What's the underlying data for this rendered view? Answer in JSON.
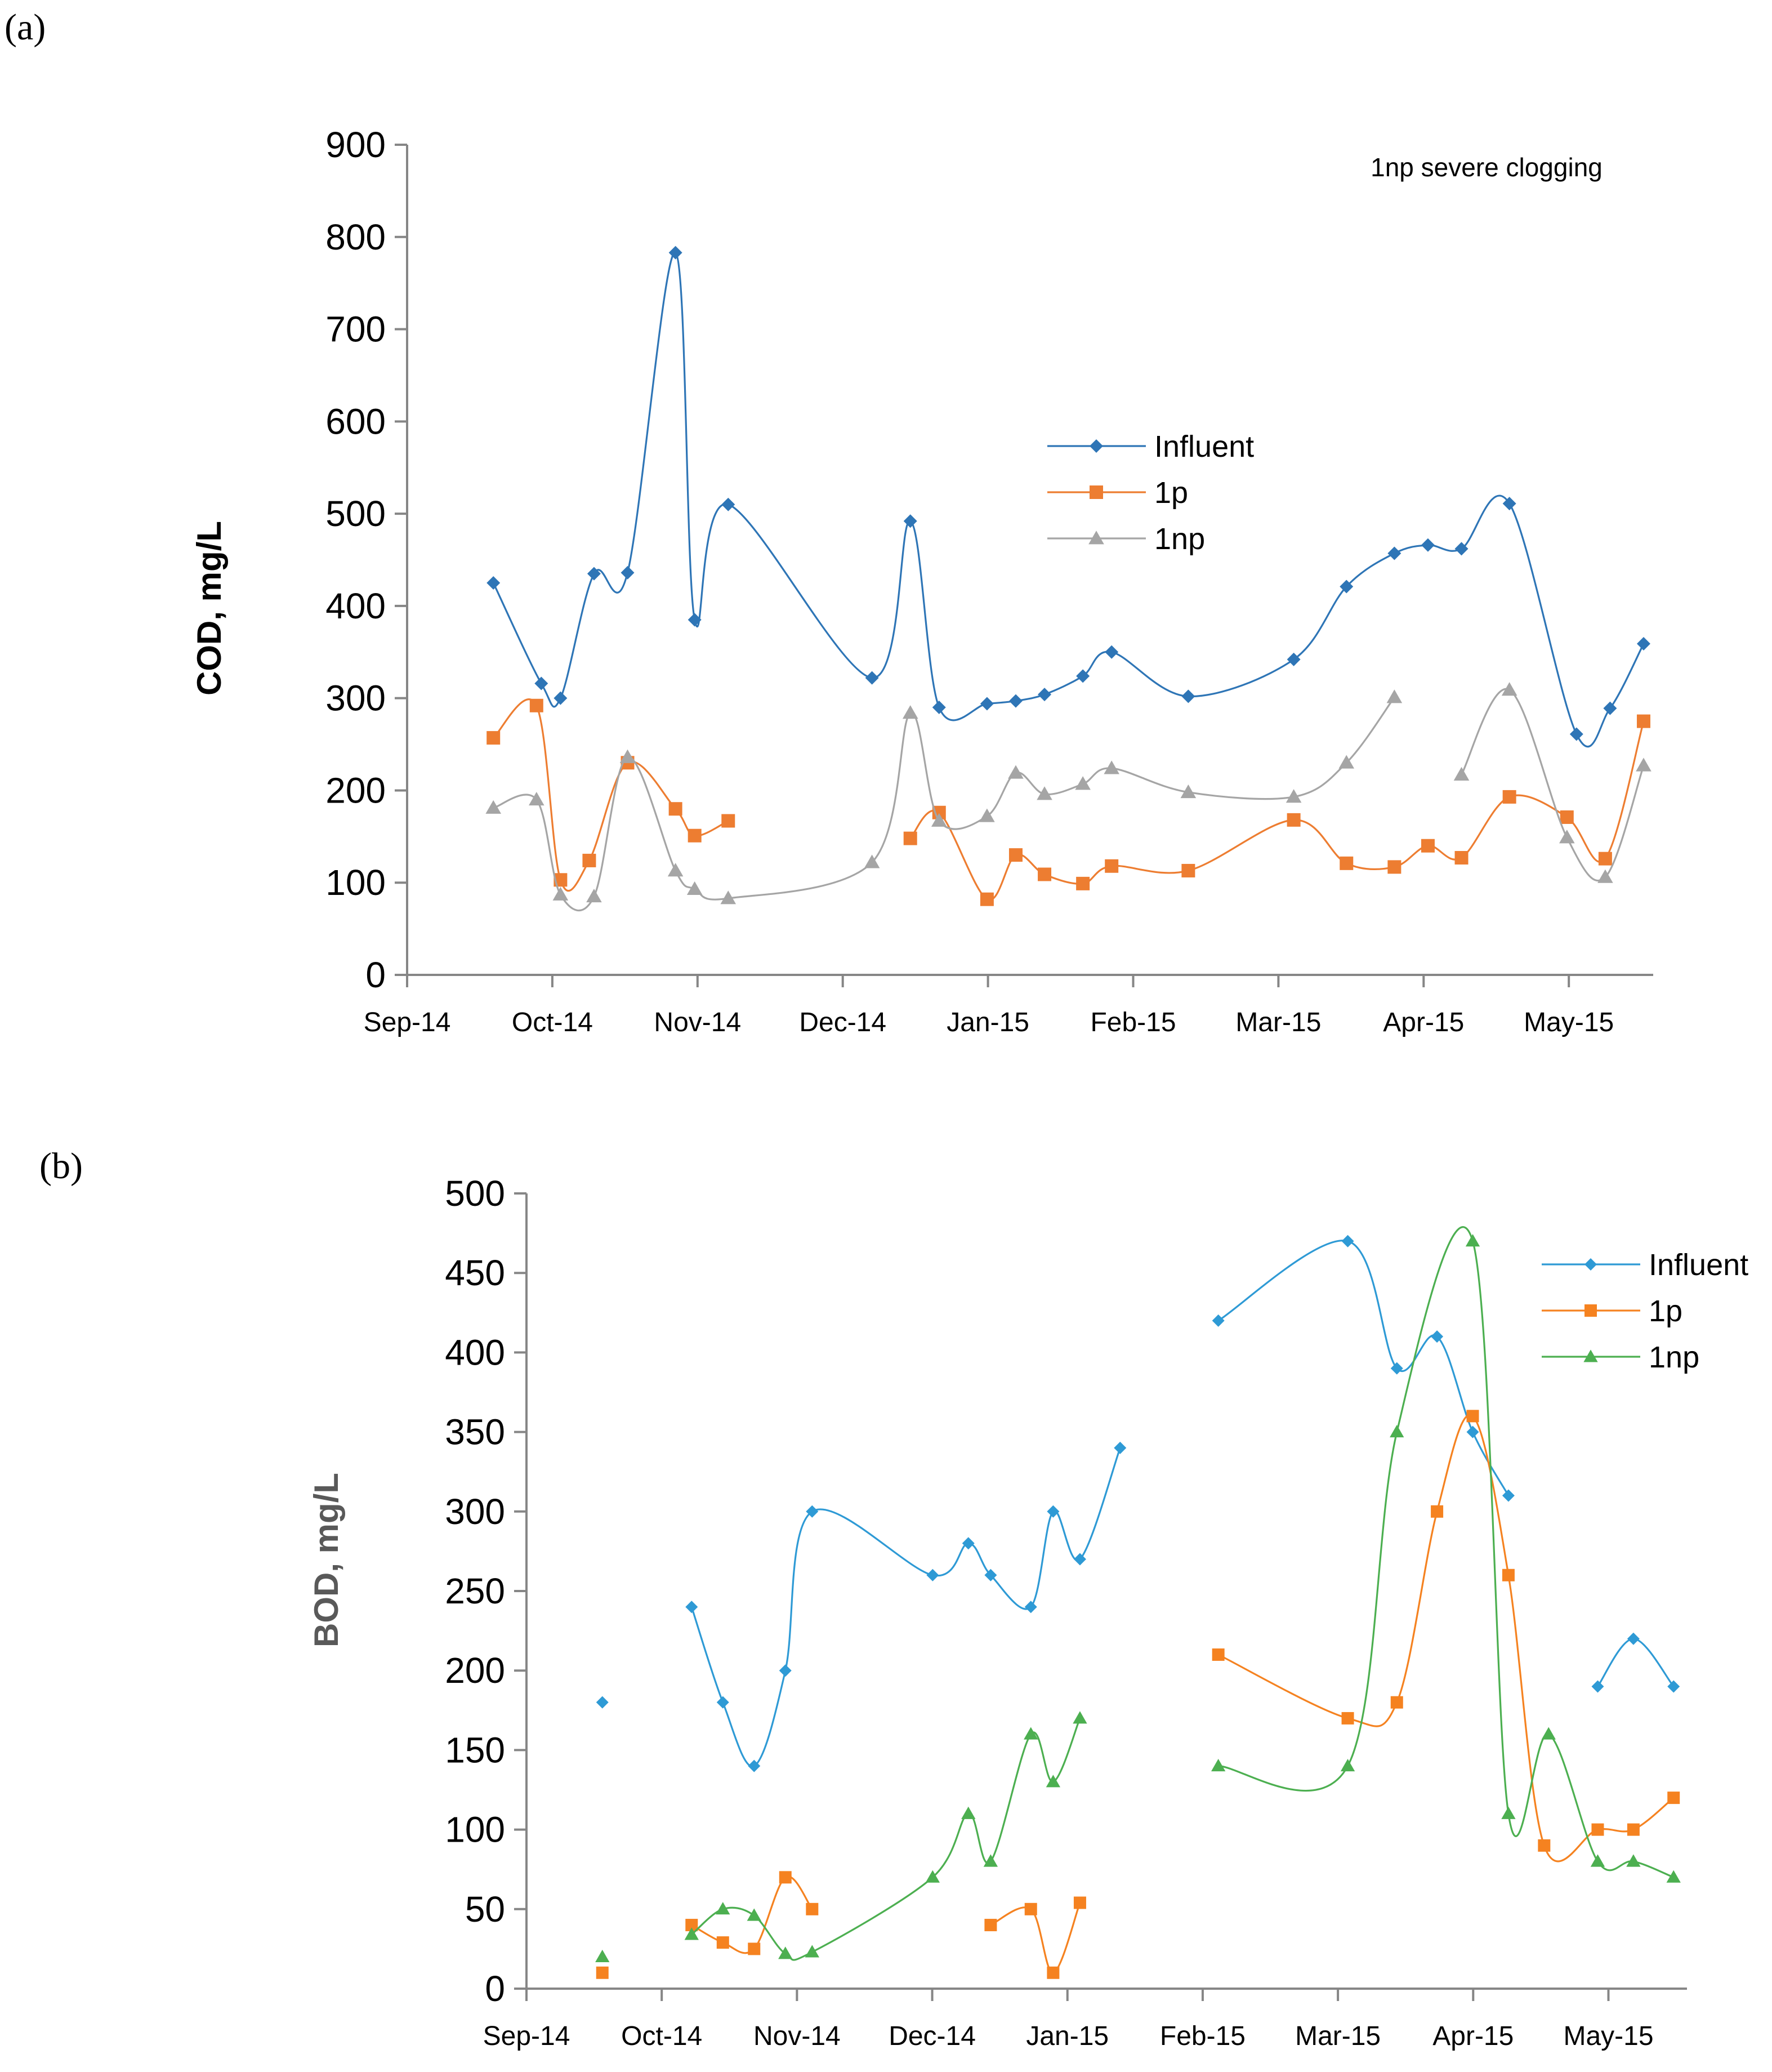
{
  "chart_data": [
    {
      "panel_label": "(a)",
      "type": "line",
      "title": "",
      "xlabel": "",
      "ylabel": "COD, mg/L",
      "ylim": [
        0,
        900
      ],
      "yticks": [
        "0",
        "100",
        "200",
        "300",
        "400",
        "500",
        "600",
        "700",
        "800",
        "900"
      ],
      "xlim": [
        0,
        260
      ],
      "xtick_labels": [
        "Sep-14",
        "Oct-14",
        "Nov-14",
        "Dec-14",
        "Jan-15",
        "Feb-15",
        "Mar-15",
        "Apr-15",
        "May-15"
      ],
      "annotation": "1np severe clogging",
      "legend_position": "center-right",
      "series": [
        {
          "name": "Influent",
          "color": "#2E75B6",
          "marker": "diamond",
          "segments": [
            [
              [
                18,
                425
              ],
              [
                28,
                316
              ],
              [
                32,
                300
              ],
              [
                39,
                435
              ],
              [
                46,
                436
              ],
              [
                56,
                783
              ],
              [
                60,
                385
              ],
              [
                67,
                510
              ],
              [
                97,
                322
              ],
              [
                105,
                492
              ],
              [
                111,
                290
              ],
              [
                121,
                294
              ],
              [
                127,
                297
              ],
              [
                133,
                304
              ],
              [
                141,
                324
              ],
              [
                147,
                350
              ],
              [
                163,
                302
              ],
              [
                185,
                342
              ],
              [
                196,
                421
              ],
              [
                206,
                457
              ],
              [
                213,
                466
              ],
              [
                220,
                462
              ],
              [
                230,
                511
              ],
              [
                244,
                261
              ],
              [
                251,
                289
              ],
              [
                258,
                359
              ]
            ]
          ]
        },
        {
          "name": "1p",
          "color": "#ED7D31",
          "marker": "square",
          "segments": [
            [
              [
                18,
                257
              ],
              [
                27,
                292
              ],
              [
                32,
                103
              ],
              [
                38,
                124
              ],
              [
                46,
                230
              ],
              [
                56,
                180
              ],
              [
                60,
                151
              ],
              [
                67,
                167
              ]
            ],
            [
              [
                105,
                148
              ],
              [
                111,
                176
              ],
              [
                121,
                82
              ],
              [
                127,
                130
              ],
              [
                133,
                109
              ],
              [
                141,
                99
              ],
              [
                147,
                118
              ],
              [
                163,
                113
              ],
              [
                185,
                168
              ],
              [
                196,
                121
              ],
              [
                206,
                117
              ],
              [
                213,
                140
              ],
              [
                220,
                127
              ],
              [
                230,
                193
              ],
              [
                242,
                171
              ],
              [
                250,
                126
              ],
              [
                258,
                275
              ]
            ]
          ]
        },
        {
          "name": "1np",
          "color": "#A5A5A5",
          "marker": "triangle",
          "segments": [
            [
              [
                18,
                181
              ],
              [
                27,
                190
              ],
              [
                32,
                87
              ],
              [
                39,
                85
              ],
              [
                46,
                236
              ],
              [
                56,
                113
              ],
              [
                60,
                93
              ],
              [
                67,
                83
              ],
              [
                97,
                122
              ],
              [
                105,
                284
              ],
              [
                111,
                167
              ],
              [
                121,
                172
              ],
              [
                127,
                219
              ],
              [
                133,
                196
              ],
              [
                141,
                207
              ],
              [
                147,
                224
              ],
              [
                163,
                198
              ],
              [
                185,
                193
              ],
              [
                196,
                230
              ],
              [
                206,
                301
              ]
            ],
            [
              [
                220,
                217
              ],
              [
                230,
                309
              ],
              [
                242,
                149
              ],
              [
                250,
                106
              ],
              [
                258,
                227
              ]
            ]
          ]
        }
      ]
    },
    {
      "panel_label": "(b)",
      "type": "line",
      "title": "",
      "xlabel": "",
      "ylabel": "BOD, mg/L",
      "ylim": [
        0,
        500
      ],
      "yticks": [
        "0",
        "50",
        "100",
        "150",
        "200",
        "250",
        "300",
        "350",
        "400",
        "450",
        "500"
      ],
      "xlim": [
        0,
        260
      ],
      "xtick_labels": [
        "Sep-14",
        "Oct-14",
        "Nov-14",
        "Dec-14",
        "Jan-15",
        "Feb-15",
        "Mar-15",
        "Apr-15",
        "May-15"
      ],
      "legend_position": "top-right",
      "series": [
        {
          "name": "Influent",
          "color": "#2E9AD5",
          "marker": "diamond",
          "segments": [
            [
              [
                17,
                180
              ]
            ],
            [
              [
                37,
                240
              ],
              [
                44,
                180
              ],
              [
                51,
                140
              ],
              [
                58,
                200
              ],
              [
                64,
                300
              ],
              [
                91,
                260
              ],
              [
                99,
                280
              ],
              [
                104,
                260
              ],
              [
                113,
                240
              ],
              [
                118,
                300
              ],
              [
                124,
                270
              ],
              [
                133,
                340
              ]
            ],
            [
              [
                155,
                420
              ],
              [
                184,
                470
              ],
              [
                195,
                390
              ],
              [
                204,
                410
              ],
              [
                212,
                350
              ],
              [
                220,
                310
              ]
            ],
            [
              [
                240,
                190
              ],
              [
                248,
                220
              ],
              [
                257,
                190
              ]
            ]
          ]
        },
        {
          "name": "1p",
          "color": "#F58220",
          "marker": "square",
          "segments": [
            [
              [
                17,
                10
              ]
            ],
            [
              [
                37,
                40
              ],
              [
                44,
                29
              ],
              [
                51,
                25
              ],
              [
                58,
                70
              ],
              [
                64,
                50
              ]
            ],
            [
              [
                104,
                40
              ],
              [
                113,
                50
              ],
              [
                118,
                10
              ],
              [
                124,
                54
              ]
            ],
            [
              [
                155,
                210
              ],
              [
                184,
                170
              ],
              [
                195,
                180
              ],
              [
                204,
                300
              ],
              [
                212,
                360
              ],
              [
                220,
                260
              ],
              [
                228,
                90
              ],
              [
                240,
                100
              ],
              [
                248,
                100
              ],
              [
                257,
                120
              ]
            ]
          ]
        },
        {
          "name": "1np",
          "color": "#4CAF50",
          "marker": "triangle",
          "segments": [
            [
              [
                17,
                20
              ]
            ],
            [
              [
                37,
                34
              ],
              [
                44,
                50
              ],
              [
                51,
                46
              ],
              [
                58,
                22
              ],
              [
                64,
                23
              ],
              [
                91,
                70
              ],
              [
                99,
                110
              ],
              [
                104,
                80
              ],
              [
                113,
                160
              ],
              [
                118,
                130
              ],
              [
                124,
                170
              ]
            ],
            [
              [
                155,
                140
              ],
              [
                184,
                140
              ],
              [
                195,
                350
              ],
              [
                212,
                470
              ],
              [
                220,
                110
              ],
              [
                229,
                160
              ],
              [
                240,
                80
              ],
              [
                248,
                80
              ],
              [
                257,
                70
              ]
            ]
          ]
        }
      ]
    }
  ]
}
